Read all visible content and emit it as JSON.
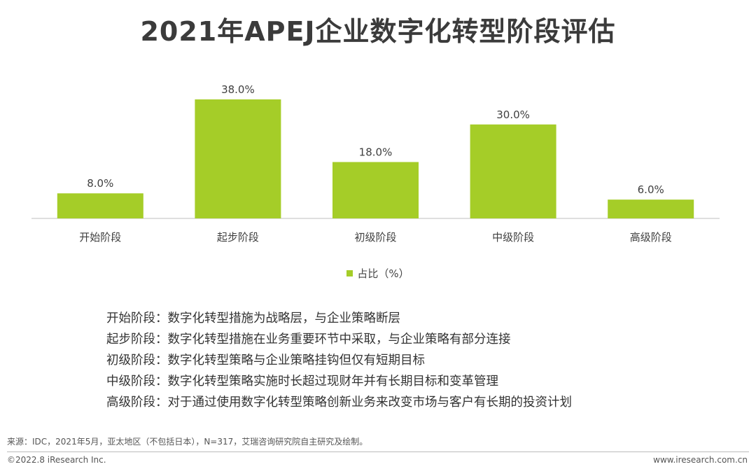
{
  "colors": {
    "bar": "#a5cd28",
    "axis": "#bfbfbf",
    "text": "#333333"
  },
  "chart_data": {
    "type": "bar",
    "title": "2021年APEJ企业数字化转型阶段评估",
    "categories": [
      "开始阶段",
      "起步阶段",
      "初级阶段",
      "中级阶段",
      "高级阶段"
    ],
    "series": [
      {
        "name": "占比（%）",
        "values": [
          8.0,
          38.0,
          18.0,
          30.0,
          6.0
        ],
        "labels": [
          "8.0%",
          "38.0%",
          "18.0%",
          "30.0%",
          "6.0%"
        ]
      }
    ],
    "ylim": [
      0,
      40
    ],
    "grid": false,
    "legend": "bottom-center"
  },
  "notes": [
    {
      "stage": "开始阶段：",
      "text": "数字化转型措施为战略层，与企业策略断层"
    },
    {
      "stage": "起步阶段：",
      "text": "数字化转型措施在业务重要环节中采取，与企业策略有部分连接"
    },
    {
      "stage": "初级阶段：",
      "text": "数字化转型策略与企业策略挂钩但仅有短期目标"
    },
    {
      "stage": "中级阶段：",
      "text": "数字化转型策略实施时长超过现财年并有长期目标和变革管理"
    },
    {
      "stage": "高级阶段：",
      "text": "对于通过使用数字化转型策略创新业务来改变市场与客户有长期的投资计划"
    }
  ],
  "footer": {
    "source": "来源：IDC，2021年5月，亚太地区（不包括日本），N=317，艾瑞咨询研究院自主研究及绘制。",
    "copyright": "©2022.8 iResearch Inc.",
    "site": "www.iresearch.com.cn"
  }
}
